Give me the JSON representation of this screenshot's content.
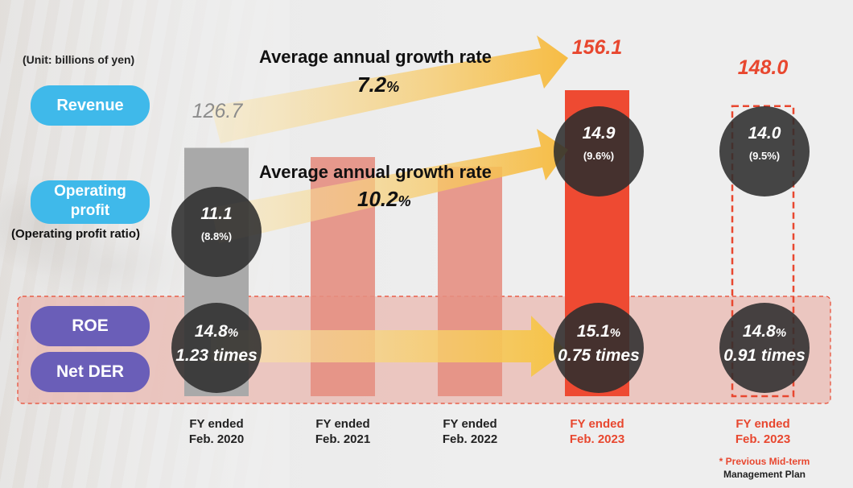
{
  "unit_label": "(Unit: billions of yen)",
  "legend": {
    "revenue": "Revenue",
    "operating_profit_line1": "Operating",
    "operating_profit_line2": "profit",
    "operating_profit_ratio": "(Operating profit ratio)",
    "roe": "ROE",
    "net_der": "Net DER"
  },
  "growth": {
    "revenue_title": "Average annual growth rate",
    "revenue_rate": "7.2",
    "operating_title": "Average annual growth rate",
    "operating_rate": "10.2",
    "pct": "%"
  },
  "colors": {
    "bar_2020": "#a9a9a9",
    "bar_mid": "#e68f82",
    "bar_2023": "#ee4a32",
    "plan_outline": "#e8472f",
    "band": "#e9b8b0",
    "arrow": "#f7c85a",
    "accent_red": "#e8472f",
    "grey_label": "#8c8c8c"
  },
  "chart_data": {
    "type": "bar",
    "categories": [
      "FY ended Feb. 2020",
      "FY ended Feb. 2021",
      "FY ended Feb. 2022",
      "FY ended Feb. 2023",
      "FY ended Feb. 2023"
    ],
    "category_lines": [
      [
        "FY ended",
        "Feb. 2020"
      ],
      [
        "FY ended",
        "Feb. 2021"
      ],
      [
        "FY ended",
        "Feb. 2022"
      ],
      [
        "FY ended",
        "Feb. 2023"
      ],
      [
        "FY ended",
        "Feb. 2023"
      ]
    ],
    "revenue": [
      126.7,
      122,
      117,
      156.1,
      148.0
    ],
    "revenue_labels": [
      "126.7",
      "",
      "",
      "156.1",
      "148.0"
    ],
    "operating_profit_labels": [
      "11.1",
      "",
      "",
      "14.9",
      "14.0"
    ],
    "operating_profit_ratio_labels": [
      "(8.8%)",
      "",
      "",
      "(9.6%)",
      "(9.5%)"
    ],
    "roe_labels": [
      "14.8",
      "",
      "",
      "15.1",
      "14.8"
    ],
    "net_der_labels": [
      "1.23 times",
      "",
      "",
      "0.75 times",
      "0.91 times"
    ],
    "plan_note_line1": "* Previous Mid-term",
    "plan_note_line2": "Management Plan",
    "ylim": [
      0,
      170
    ]
  }
}
